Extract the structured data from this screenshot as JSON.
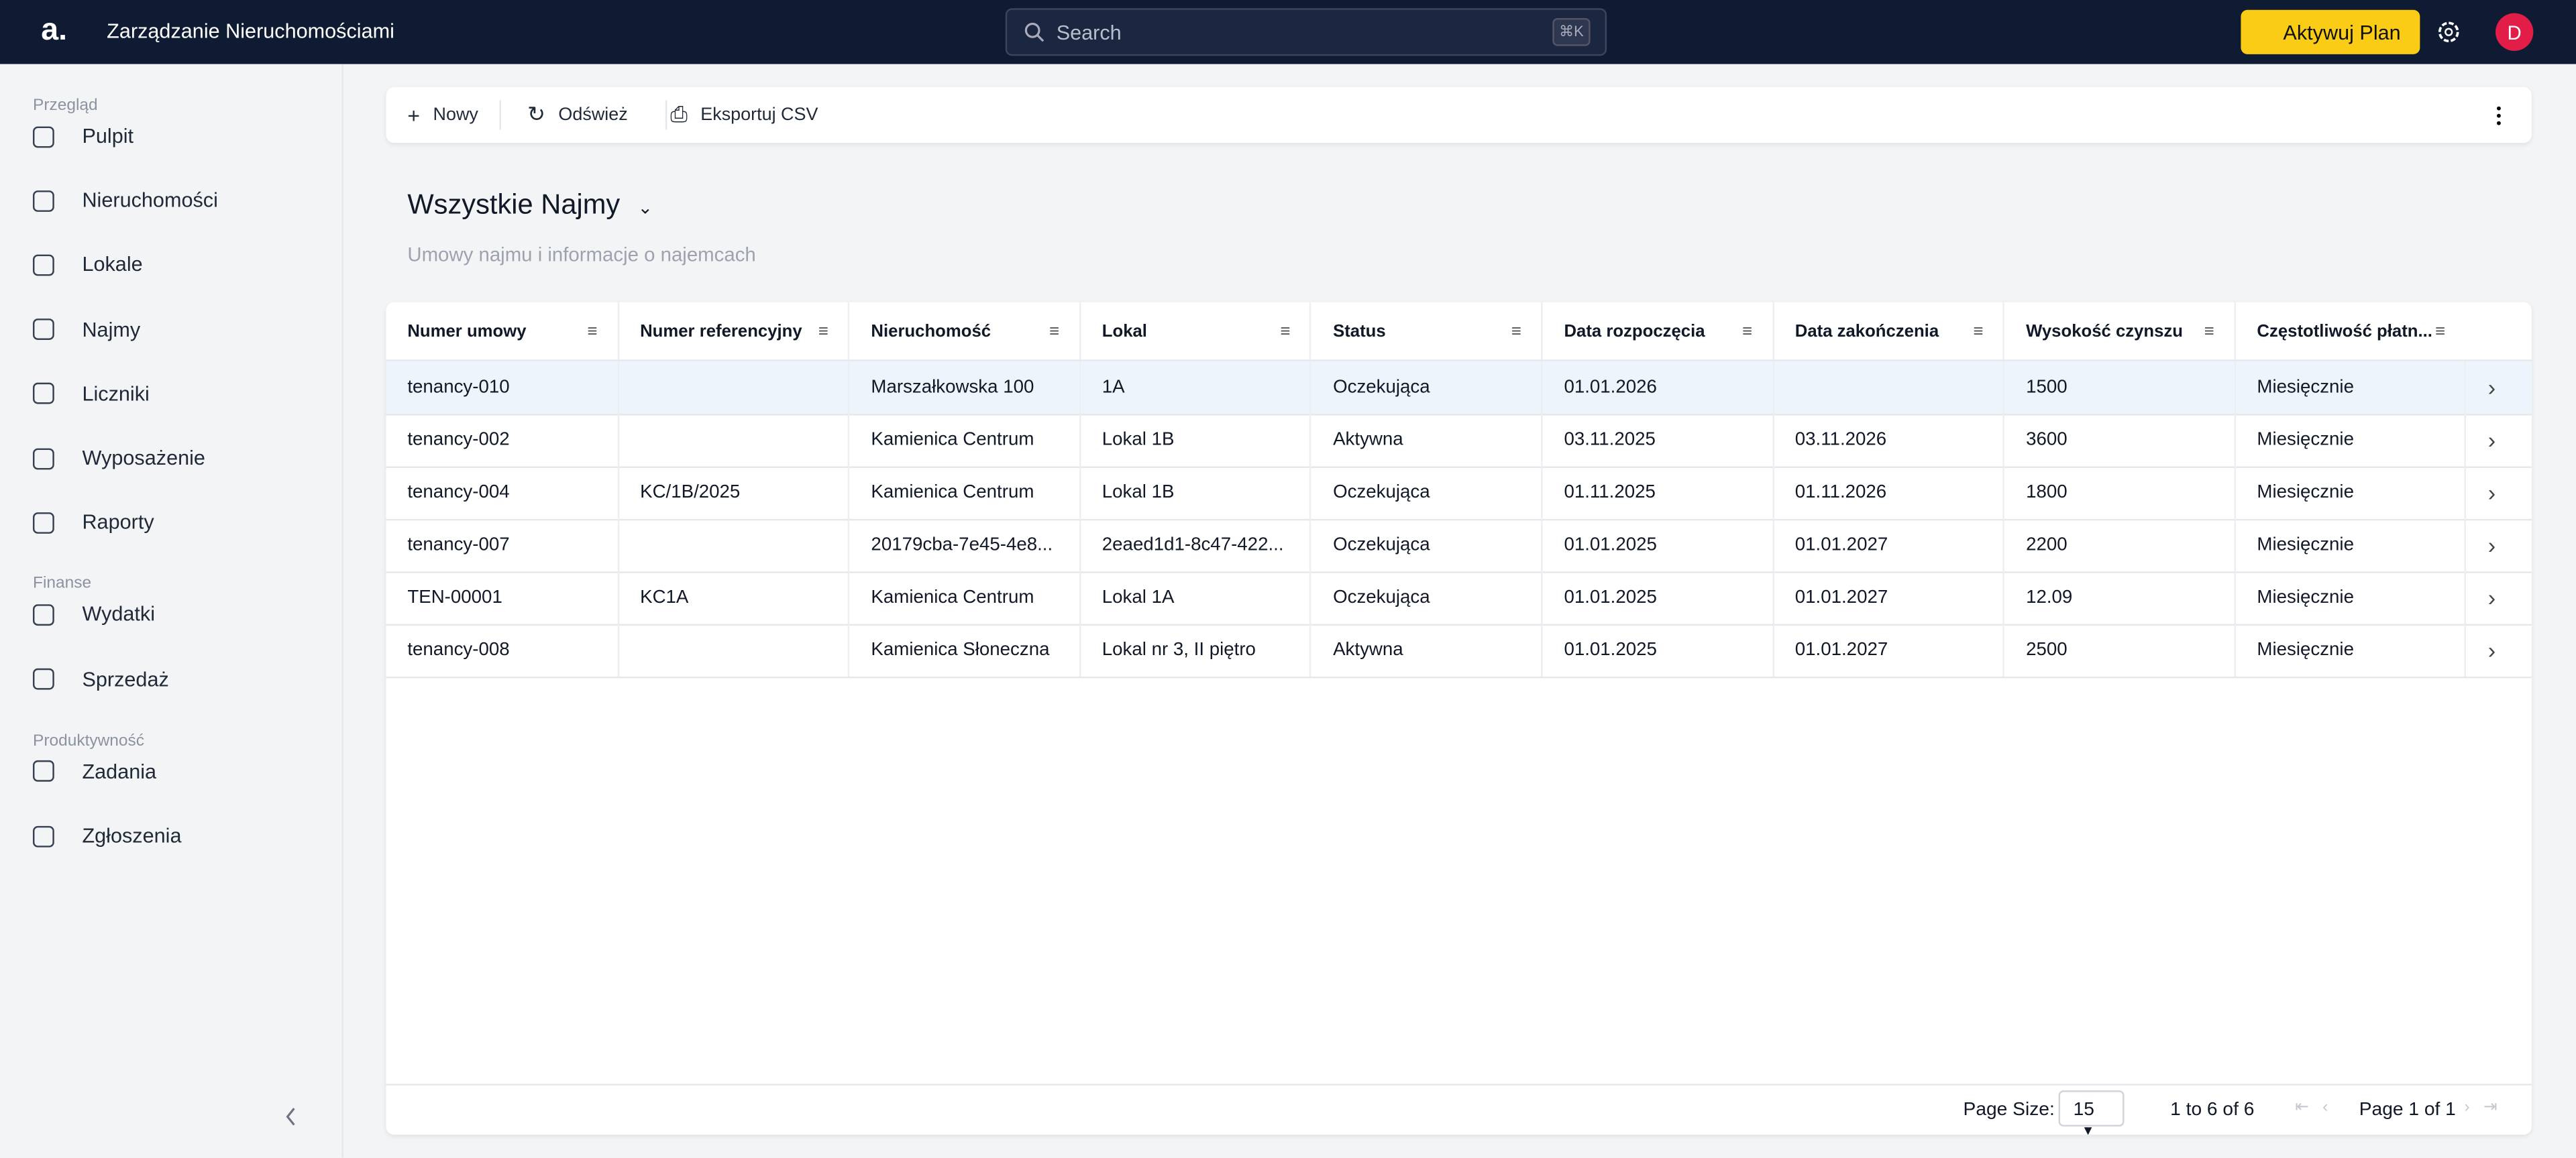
{
  "header": {
    "logo": "a.",
    "title": "Zarządzanie Nieruchomościami",
    "search": "Search",
    "shortcut": "⌘K",
    "plan_button": "Aktywuj Plan",
    "avatar": "D"
  },
  "sidebar": {
    "sections": [
      {
        "title": "Przegląd",
        "items": [
          "Pulpit",
          "Nieruchomości",
          "Lokale",
          "Najmy",
          "Liczniki",
          "Wyposażenie",
          "Raporty"
        ]
      },
      {
        "title": "Finanse",
        "items": [
          "Wydatki",
          "Sprzedaż"
        ]
      },
      {
        "title": "Produktywność",
        "items": [
          "Zadania",
          "Zgłoszenia"
        ]
      }
    ]
  },
  "toolbar": {
    "buttons": [
      "Nowy",
      "Odśwież",
      "Eksportuj CSV"
    ]
  },
  "view": {
    "title": "Wszystkie Najmy",
    "subtitle": "Umowy najmu i informacje o najemcach"
  },
  "table": {
    "columns": [
      "Numer umowy",
      "Numer referencyjny",
      "Nieruchomość",
      "Lokal",
      "Status",
      "Data rozpoczęcia",
      "Data zakończenia",
      "Wysokość czynszu",
      "Częstotliwość płatn..."
    ],
    "rows": [
      [
        "tenancy-010",
        null,
        "Marszałkowska 100",
        "1A",
        "Oczekująca",
        "01.01.2026",
        null,
        1500,
        "Miesięcznie"
      ],
      [
        "tenancy-002",
        null,
        "Kamienica Centrum",
        "Lokal 1B",
        "Aktywna",
        "03.11.2025",
        "03.11.2026",
        3600,
        "Miesięcznie"
      ],
      [
        "tenancy-004",
        "KC/1B/2025",
        "Kamienica Centrum",
        "Lokal 1B",
        "Oczekująca",
        "01.11.2025",
        "01.11.2026",
        1800,
        "Miesięcznie"
      ],
      [
        "tenancy-007",
        null,
        "20179cba-7e45-4e8...",
        "2eaed1d1-8c47-422...",
        "Oczekująca",
        "01.01.2025",
        "01.01.2027",
        2200,
        "Miesięcznie"
      ],
      [
        "TEN-00001",
        "KC1A",
        "Kamienica Centrum",
        "Lokal 1A",
        "Oczekująca",
        "01.01.2025",
        "01.01.2027",
        12.09,
        "Miesięcznie"
      ],
      [
        "tenancy-008",
        null,
        "Kamienica Słoneczna",
        "Lokal nr 3, II piętro",
        "Aktywna",
        "01.01.2025",
        "01.01.2027",
        2500,
        "Miesięcznie"
      ]
    ]
  },
  "pagination": {
    "page_size_label": "Page Size:",
    "page_size": "15",
    "range": "1 to 6 of 6",
    "page": "Page 1 of 1"
  }
}
